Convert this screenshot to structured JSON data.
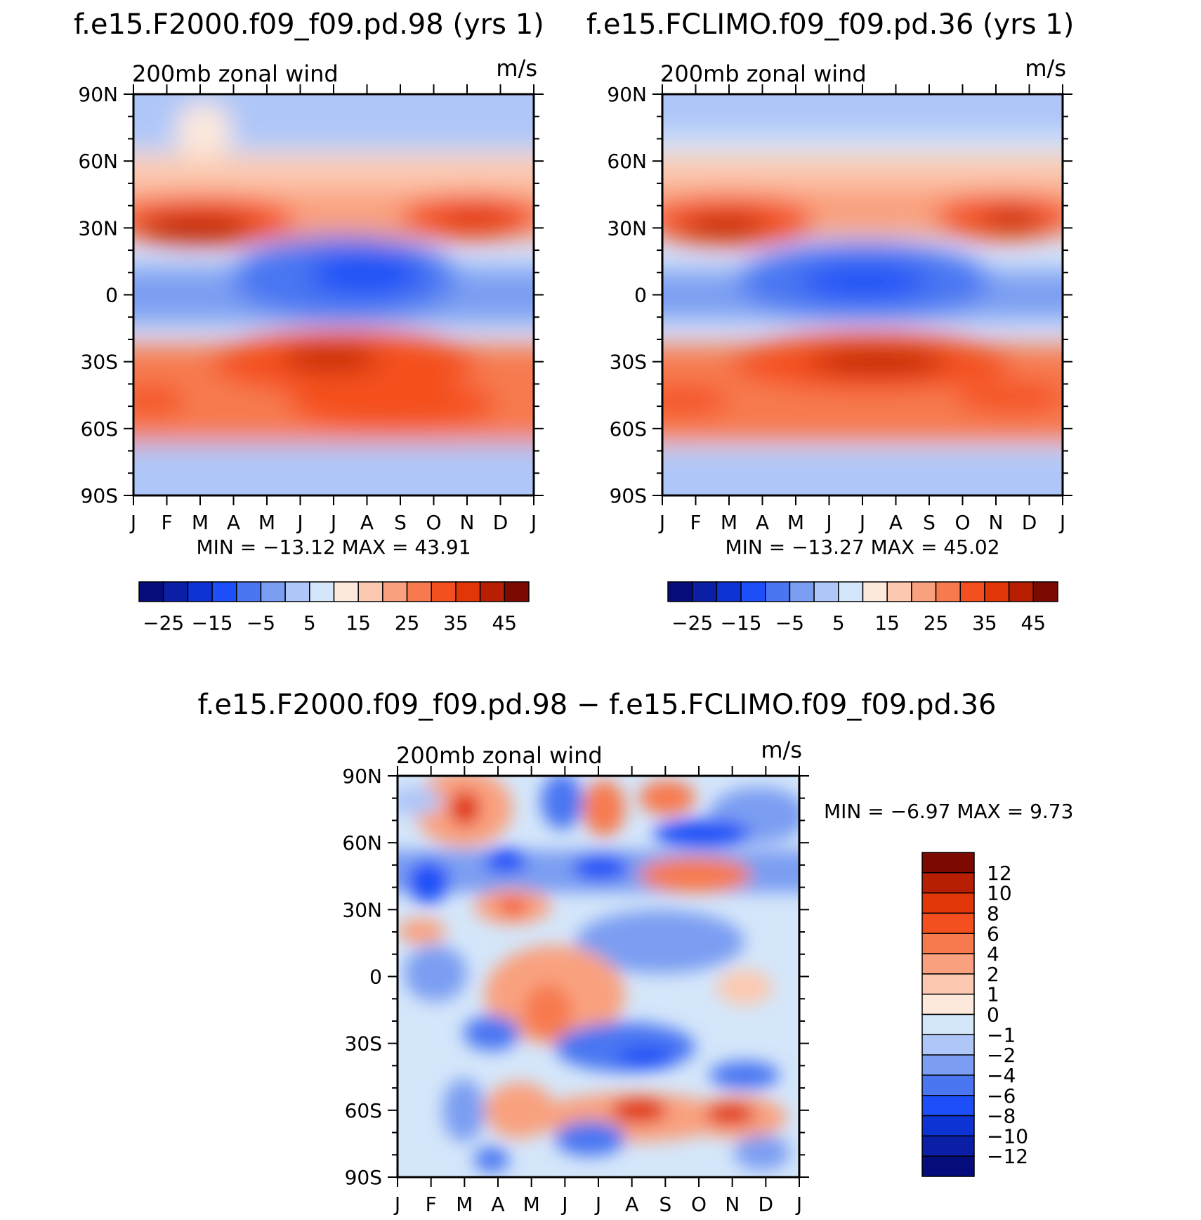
{
  "chart_data": [
    {
      "type": "heatmap",
      "panel": "model",
      "title": "f.e15.F2000.f09_f09.pd.98 (yrs  1)",
      "left_label": "200mb  zonal  wind",
      "units": "m/s",
      "x_ticks": [
        "J",
        "F",
        "M",
        "A",
        "M",
        "J",
        "J",
        "A",
        "S",
        "O",
        "N",
        "D",
        "J"
      ],
      "y_ticks": [
        "90N",
        "60N",
        "30N",
        "0",
        "30S",
        "60S",
        "90S"
      ],
      "ylim": [
        -90,
        90
      ],
      "stats": {
        "label": "MIN =  −13.12  MAX =   43.91",
        "min": -13.12,
        "max": 43.91
      },
      "colorbar": {
        "orientation": "horizontal",
        "labels": [
          "−25",
          "−15",
          "−5",
          "5",
          "15",
          "25",
          "35",
          "45"
        ],
        "colors": [
          "#050c7c",
          "#0a1fa6",
          "#0e33d4",
          "#1c4ff7",
          "#4a76f2",
          "#7c9ef2",
          "#aec6f8",
          "#d4e6fa",
          "#fde9dc",
          "#fcc9b0",
          "#f9a17f",
          "#f77a4f",
          "#f4501f",
          "#e03608",
          "#b81f02",
          "#7d0a00"
        ]
      },
      "field": {
        "summary": "subtropical westerly jets near 30N (strongest Feb-Mar ~42 m/s, Nov-Dec ~38) and 30S-50S (strongest Jun-Aug ~43 m/s); easterlies near the equator, minimum ~-13 m/s in Jun-Aug; weak easterlies at polar latitudes"
      }
    },
    {
      "type": "heatmap",
      "panel": "obs",
      "title": "f.e15.FCLIMO.f09_f09.pd.36 (yrs  1)",
      "left_label": "200mb  zonal  wind",
      "units": "m/s",
      "x_ticks": [
        "J",
        "F",
        "M",
        "A",
        "M",
        "J",
        "J",
        "A",
        "S",
        "O",
        "N",
        "D",
        "J"
      ],
      "y_ticks": [
        "90N",
        "60N",
        "30N",
        "0",
        "30S",
        "60S",
        "90S"
      ],
      "ylim": [
        -90,
        90
      ],
      "stats": {
        "label": "MIN =  −13.27  MAX =   45.02",
        "min": -13.27,
        "max": 45.02
      },
      "colorbar": {
        "orientation": "horizontal",
        "labels": [
          "−25",
          "−15",
          "−5",
          "5",
          "15",
          "25",
          "35",
          "45"
        ],
        "colors": [
          "#050c7c",
          "#0a1fa6",
          "#0e33d4",
          "#1c4ff7",
          "#4a76f2",
          "#7c9ef2",
          "#aec6f8",
          "#d4e6fa",
          "#fde9dc",
          "#fcc9b0",
          "#f9a17f",
          "#f77a4f",
          "#f4501f",
          "#e03608",
          "#b81f02",
          "#7d0a00"
        ]
      },
      "field": {
        "summary": "similar jet structure, slightly stronger southern jet (~45 m/s in Jul) and equatorial easterlies to ~-13 m/s in Jul"
      }
    },
    {
      "type": "heatmap",
      "panel": "difference",
      "title": "f.e15.F2000.f09_f09.pd.98 − f.e15.FCLIMO.f09_f09.pd.36",
      "left_label": "200mb  zonal  wind",
      "units": "m/s",
      "x_ticks": [
        "J",
        "F",
        "M",
        "A",
        "M",
        "J",
        "J",
        "A",
        "S",
        "O",
        "N",
        "D",
        "J"
      ],
      "y_ticks": [
        "90N",
        "60N",
        "30N",
        "0",
        "30S",
        "60S",
        "90S"
      ],
      "ylim": [
        -90,
        90
      ],
      "stats": {
        "label": "MIN =    −6.97  MAX =    9.73",
        "min": -6.97,
        "max": 9.73
      },
      "colorbar": {
        "orientation": "vertical",
        "labels": [
          "12",
          "10",
          "8",
          "6",
          "4",
          "2",
          "1",
          "0",
          "−1",
          "−2",
          "−4",
          "−6",
          "−8",
          "−10",
          "−12"
        ],
        "colors": [
          "#7d0a00",
          "#b81f02",
          "#e03608",
          "#f4501f",
          "#f77a4f",
          "#f9a17f",
          "#fcc9b0",
          "#fde9dc",
          "#d4e6fa",
          "#aec6f8",
          "#7c9ef2",
          "#4a76f2",
          "#1c4ff7",
          "#0e33d4",
          "#0a1fa6",
          "#050c7c"
        ]
      },
      "field": {
        "summary": "small-scale alternating anomalies of roughly ±7 m/s; positive around 75N in Mar, 30N in Apr, 55S in Aug and Nov; negative around 50N in Feb and Sep, 35S in Aug-Sep"
      }
    }
  ]
}
